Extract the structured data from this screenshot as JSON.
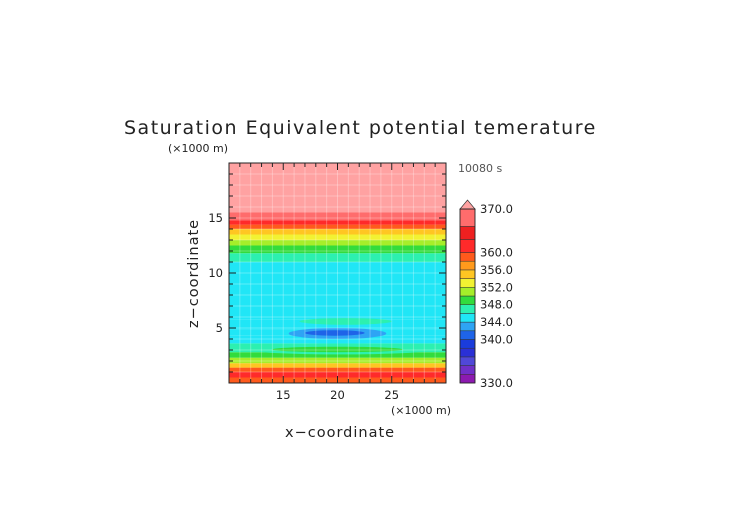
{
  "chart_data": {
    "type": "heatmap",
    "title": "Saturation Equivalent potential temerature",
    "time_label": "10080 s",
    "xlabel": "x−coordinate",
    "ylabel": "z−coordinate",
    "x_unit": "(×1000 m)",
    "y_unit": "(×1000 m)",
    "xlim": [
      10,
      30
    ],
    "ylim": [
      0,
      20
    ],
    "x_ticks": [
      15,
      20,
      25
    ],
    "y_ticks": [
      5,
      10,
      15
    ],
    "x_tick_labels": [
      "15",
      "20",
      "25"
    ],
    "y_tick_labels": [
      "5",
      "10",
      "15"
    ],
    "colorbar": {
      "min": 330,
      "max": 370,
      "extend": "max",
      "tick_values": [
        330,
        340,
        344,
        348,
        352,
        356,
        360,
        370
      ],
      "tick_labels": [
        "330.0",
        "340.0",
        "344.0",
        "348.0",
        "352.0",
        "356.0",
        "360.0",
        "370.0"
      ],
      "bands": [
        {
          "from": 330,
          "to": 332,
          "color": "#8c1ab0"
        },
        {
          "from": 332,
          "to": 334,
          "color": "#7030c8"
        },
        {
          "from": 334,
          "to": 336,
          "color": "#5048d8"
        },
        {
          "from": 336,
          "to": 338,
          "color": "#2a30d6"
        },
        {
          "from": 338,
          "to": 340,
          "color": "#1a3cdc"
        },
        {
          "from": 340,
          "to": 342,
          "color": "#1e64e8"
        },
        {
          "from": 342,
          "to": 344,
          "color": "#2ea4f4"
        },
        {
          "from": 344,
          "to": 346,
          "color": "#20e6f6"
        },
        {
          "from": 346,
          "to": 348,
          "color": "#2cf0b0"
        },
        {
          "from": 348,
          "to": 350,
          "color": "#32dc3c"
        },
        {
          "from": 350,
          "to": 352,
          "color": "#a6ee2a"
        },
        {
          "from": 352,
          "to": 354,
          "color": "#f2f232"
        },
        {
          "from": 354,
          "to": 356,
          "color": "#ffc622"
        },
        {
          "from": 356,
          "to": 358,
          "color": "#ff9a1c"
        },
        {
          "from": 358,
          "to": 360,
          "color": "#ff5a1c"
        },
        {
          "from": 360,
          "to": 363,
          "color": "#ff2a2a"
        },
        {
          "from": 363,
          "to": 366,
          "color": "#ee2020"
        },
        {
          "from": 366,
          "to": 370,
          "color": "#ff6c6c"
        },
        {
          "from": 370,
          "to": 380,
          "color": "#ffa2a2"
        }
      ]
    },
    "field_rows": [
      {
        "z_from": 0.0,
        "z_to": 0.5,
        "value": 358.5
      },
      {
        "z_from": 0.5,
        "z_to": 1.0,
        "value": 361
      },
      {
        "z_from": 1.0,
        "z_to": 1.4,
        "value": 359
      },
      {
        "z_from": 1.4,
        "z_to": 1.8,
        "value": 355
      },
      {
        "z_from": 1.8,
        "z_to": 2.3,
        "value": 351
      },
      {
        "z_from": 2.3,
        "z_to": 2.8,
        "value": 349
      },
      {
        "z_from": 2.8,
        "z_to": 3.6,
        "value": 346.8
      },
      {
        "z_from": 3.6,
        "z_to": 4.3,
        "value": 345
      },
      {
        "z_from": 4.3,
        "z_to": 4.9,
        "value": 344.4
      },
      {
        "z_from": 4.9,
        "z_to": 5.8,
        "value": 345
      },
      {
        "z_from": 5.8,
        "z_to": 11.0,
        "value": 345
      },
      {
        "z_from": 11.0,
        "z_to": 11.8,
        "value": 347
      },
      {
        "z_from": 11.8,
        "z_to": 12.5,
        "value": 349
      },
      {
        "z_from": 12.5,
        "z_to": 13.0,
        "value": 351
      },
      {
        "z_from": 13.0,
        "z_to": 13.5,
        "value": 353
      },
      {
        "z_from": 13.5,
        "z_to": 14.0,
        "value": 355
      },
      {
        "z_from": 14.0,
        "z_to": 14.4,
        "value": 359
      },
      {
        "z_from": 14.4,
        "z_to": 14.8,
        "value": 361
      },
      {
        "z_from": 14.8,
        "z_to": 15.5,
        "value": 368
      },
      {
        "z_from": 15.5,
        "z_to": 20.0,
        "value": 372
      }
    ],
    "features": [
      {
        "x_from": 16.5,
        "x_to": 25.0,
        "z_from": 5.3,
        "z_to": 5.9,
        "value": 346.2
      },
      {
        "x_from": 14.0,
        "x_to": 26.5,
        "z_from": 3.6,
        "z_to": 4.3,
        "value": 344.4
      },
      {
        "x_from": 15.5,
        "x_to": 24.5,
        "z_from": 4.0,
        "z_to": 5.0,
        "value": 342.8
      },
      {
        "x_from": 17.0,
        "x_to": 22.5,
        "z_from": 4.3,
        "z_to": 4.8,
        "value": 341
      },
      {
        "x_from": 12.0,
        "x_to": 28.5,
        "z_from": 2.6,
        "z_to": 3.4,
        "value": 347.5
      },
      {
        "x_from": 14.0,
        "x_to": 26.0,
        "z_from": 2.8,
        "z_to": 3.3,
        "value": 348.8
      }
    ]
  }
}
